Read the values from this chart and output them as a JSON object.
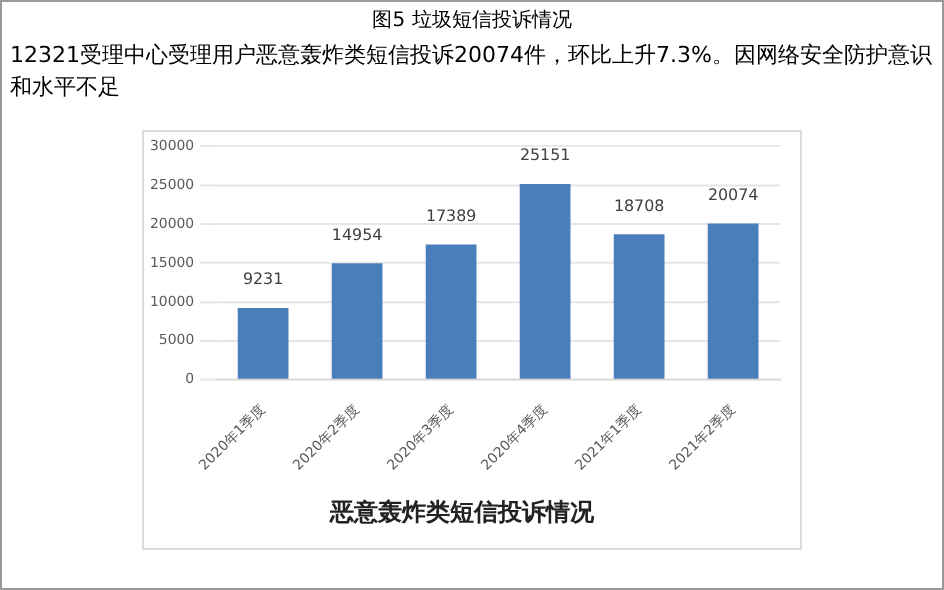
{
  "chart_data": {
    "type": "bar",
    "title": "恶意轰炸类短信投诉情况",
    "subtitle": "图5 垃圾短信投诉情况",
    "annotations": [
      "12321受理中心受理用户恶意轰炸类短信投诉20074件，环比上升7.3%。因网络安全防护意识和水平不足"
    ],
    "categories": [
      "2020年1季度",
      "2020年2季度",
      "2020年3季度",
      "2020年4季度",
      "2021年1季度",
      "2021年2季度"
    ],
    "values": [
      9231,
      14954,
      17389,
      25151,
      18708,
      20074
    ],
    "color": "#4a7ebb",
    "ylim": [
      0,
      30000
    ],
    "yticks": [
      0,
      5000,
      10000,
      15000,
      20000,
      25000,
      30000
    ],
    "grid": "y",
    "data_labels": true,
    "legend": false
  }
}
